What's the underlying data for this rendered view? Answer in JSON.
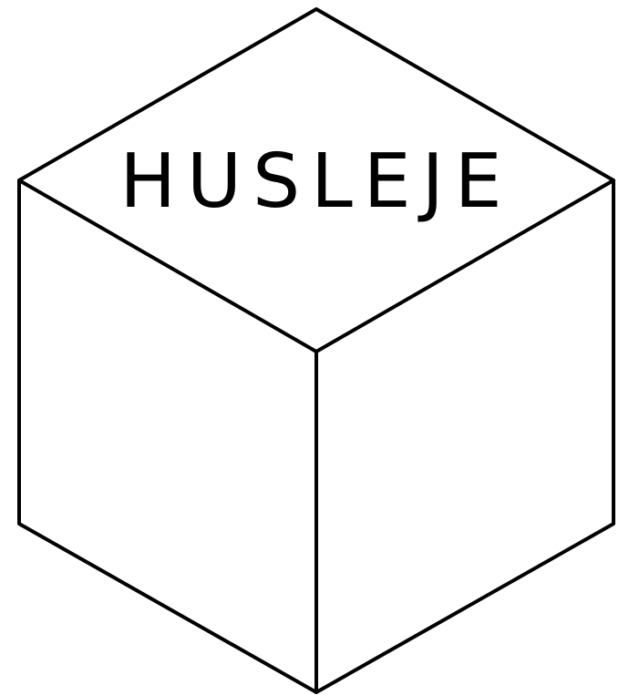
{
  "diagram": {
    "label": "HUSLEJE",
    "colors": {
      "stroke": "#000000",
      "fill": "#ffffff",
      "text": "#000000"
    }
  }
}
